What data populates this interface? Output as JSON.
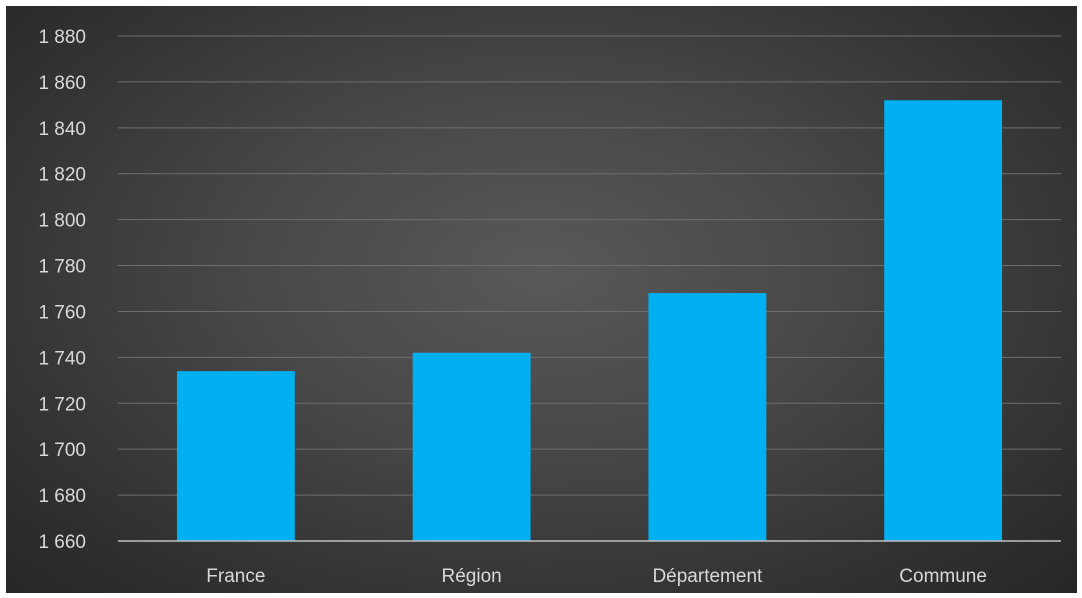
{
  "chart_data": {
    "type": "bar",
    "categories": [
      "France",
      "Région",
      "Département",
      "Commune"
    ],
    "values": [
      1734,
      1742,
      1768,
      1852
    ],
    "ylim": [
      1660,
      1880
    ],
    "yticks": [
      1660,
      1680,
      1700,
      1720,
      1740,
      1760,
      1780,
      1800,
      1820,
      1840,
      1860,
      1880
    ],
    "ytick_labels": [
      "1 660",
      "1 680",
      "1 700",
      "1 720",
      "1 740",
      "1 760",
      "1 780",
      "1 800",
      "1 820",
      "1 840",
      "1 860",
      "1 880"
    ],
    "grid": true,
    "legend": "none",
    "colors": {
      "bar": "#00b0f0",
      "background": "#404040",
      "text": "#d9d9d9",
      "grid": "#6e6e6e"
    }
  }
}
